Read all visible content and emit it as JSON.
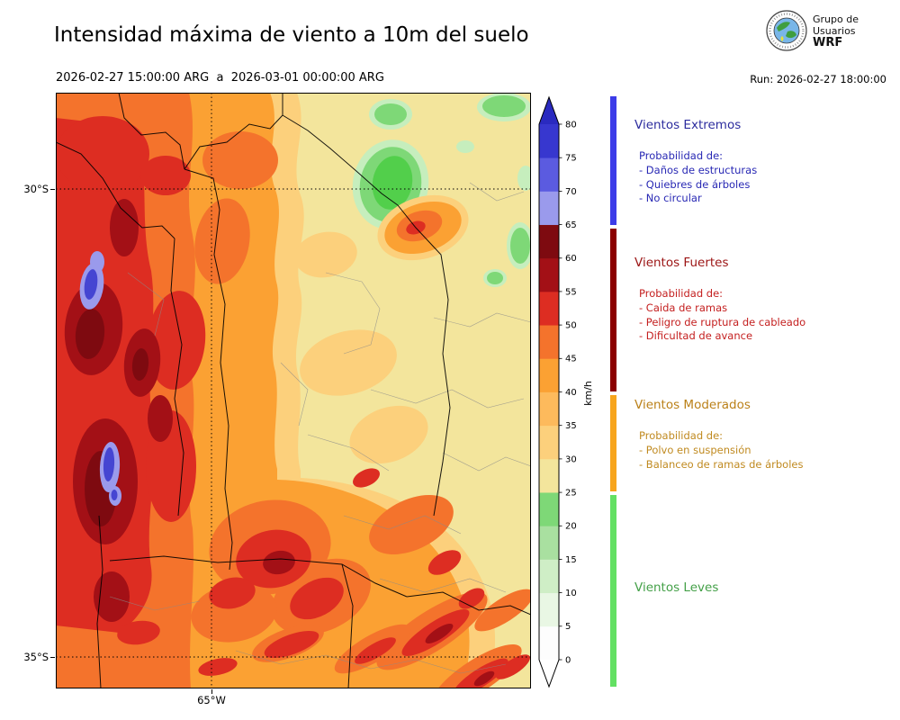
{
  "header": {
    "title": "Intensidad máxima de viento a 10m del suelo",
    "period": "2026-02-27 15:00:00 ARG  a  2026-03-01 00:00:00 ARG",
    "run": "Run: 2026-02-27 18:00:00",
    "logo": {
      "line1": "Grupo de",
      "line2": "Usuarios",
      "line3": "WRF"
    }
  },
  "map": {
    "axis": {
      "lat_top": "30°S",
      "lat_bottom": "35°S",
      "lon": "65°W"
    }
  },
  "colorbar": {
    "unit": "km/h",
    "tick_values": [
      0,
      5,
      10,
      15,
      20,
      25,
      30,
      35,
      40,
      45,
      50,
      55,
      60,
      65,
      70,
      75,
      80
    ],
    "band_colors_bottom_to_top": [
      "#fdfdfd",
      "#e9f7e4",
      "#cfeec6",
      "#a9e0a0",
      "#7ed877",
      "#f3e59c",
      "#fcd07c",
      "#fdba5c",
      "#fba133",
      "#f4732c",
      "#dd2d22",
      "#a31016",
      "#7e0a10",
      "#9a9aec",
      "#5b5be0",
      "#3737cf"
    ],
    "over_color": "#2a2ac0",
    "under_color": "#ffffff"
  },
  "legend": {
    "sections": [
      {
        "title": "Vientos Extremos",
        "title_color": "#2c2c9e",
        "text_color": "#2828b4",
        "strip_color": "#3c3ce8",
        "heading": "Probabilidad de:",
        "items": [
          "- Daños de estructuras",
          "- Quiebres de árboles",
          "- No circular"
        ]
      },
      {
        "title": "Vientos Fuertes",
        "title_color": "#9b1313",
        "text_color": "#c41f1f",
        "strip_color": "#8b0000",
        "heading": "Probabilidad de:",
        "items": [
          "- Caida de ramas",
          "- Peligro de ruptura de cableado",
          "- Dificultad de avance"
        ]
      },
      {
        "title": "Vientos Moderados",
        "title_color": "#bb8119",
        "text_color": "#c08a20",
        "strip_color": "#f7a51d",
        "heading": "Probabilidad de:",
        "items": [
          "- Polvo en suspensión",
          "- Balanceo de ramas de árboles"
        ]
      },
      {
        "title": "Vientos Leves",
        "title_color": "#44a048",
        "text_color": "#44a048",
        "strip_color": "#63e063",
        "heading": "",
        "items": []
      }
    ]
  },
  "colors": {
    "calm_green": "#7ed877",
    "light_wind_khaki": "#f3e59c",
    "moderate_orange": "#fba133",
    "strong_red": "#dd2d22",
    "extreme_blue": "#4545d2"
  }
}
